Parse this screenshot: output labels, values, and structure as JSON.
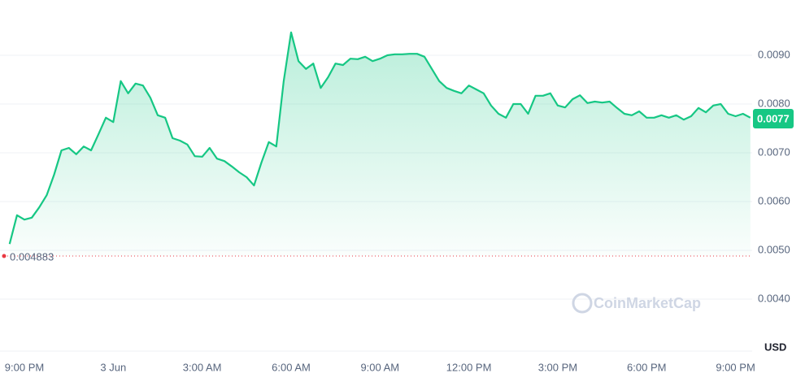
{
  "chart_data": {
    "type": "area",
    "color": "#16c784",
    "values": [
      0.00513,
      0.00572,
      0.00563,
      0.00567,
      0.00588,
      0.00613,
      0.00655,
      0.00705,
      0.0071,
      0.00697,
      0.00713,
      0.00705,
      0.00738,
      0.00772,
      0.00763,
      0.00847,
      0.00822,
      0.00842,
      0.00838,
      0.00813,
      0.00777,
      0.00772,
      0.0073,
      0.00725,
      0.00717,
      0.00693,
      0.00692,
      0.0071,
      0.00688,
      0.00683,
      0.00672,
      0.0066,
      0.0065,
      0.00633,
      0.0068,
      0.00722,
      0.00713,
      0.00847,
      0.00947,
      0.00888,
      0.00872,
      0.00883,
      0.00833,
      0.00855,
      0.00883,
      0.0088,
      0.00893,
      0.00892,
      0.00897,
      0.00888,
      0.00893,
      0.009,
      0.00902,
      0.00902,
      0.00903,
      0.00903,
      0.00897,
      0.00872,
      0.00847,
      0.00833,
      0.00827,
      0.00822,
      0.00838,
      0.0083,
      0.00822,
      0.00797,
      0.0078,
      0.00772,
      0.008,
      0.008,
      0.0078,
      0.00817,
      0.00817,
      0.00822,
      0.00797,
      0.00793,
      0.0081,
      0.00818,
      0.00802,
      0.00805,
      0.00803,
      0.00805,
      0.00792,
      0.0078,
      0.00777,
      0.00785,
      0.00772,
      0.00772,
      0.00777,
      0.00772,
      0.00777,
      0.00768,
      0.00775,
      0.00792,
      0.00783,
      0.00797,
      0.008,
      0.0078,
      0.00775,
      0.0078,
      0.00772
    ],
    "xlim": [
      0,
      100
    ],
    "xticks": [
      {
        "value": 2,
        "label": "9:00 PM"
      },
      {
        "value": 14,
        "label": "3 Jun"
      },
      {
        "value": 26,
        "label": "3:00 AM"
      },
      {
        "value": 38,
        "label": "6:00 AM"
      },
      {
        "value": 50,
        "label": "9:00 AM"
      },
      {
        "value": 62,
        "label": "12:00 PM"
      },
      {
        "value": 74,
        "label": "3:00 PM"
      },
      {
        "value": 86,
        "label": "6:00 PM"
      },
      {
        "value": 98,
        "label": "9:00 PM"
      }
    ],
    "ylim": [
      0.003,
      0.0101
    ],
    "yticks": [
      {
        "value": 0.004,
        "label": "0.0040"
      },
      {
        "value": 0.005,
        "label": "0.0050"
      },
      {
        "value": 0.006,
        "label": "0.0060"
      },
      {
        "value": 0.007,
        "label": "0.0070"
      },
      {
        "value": 0.008,
        "label": "0.0080"
      },
      {
        "value": 0.009,
        "label": "0.0090"
      }
    ],
    "grid": true,
    "open_price": 0.004883,
    "current_price": 0.0077,
    "currency": "USD",
    "watermark": "CoinMarketCap"
  }
}
